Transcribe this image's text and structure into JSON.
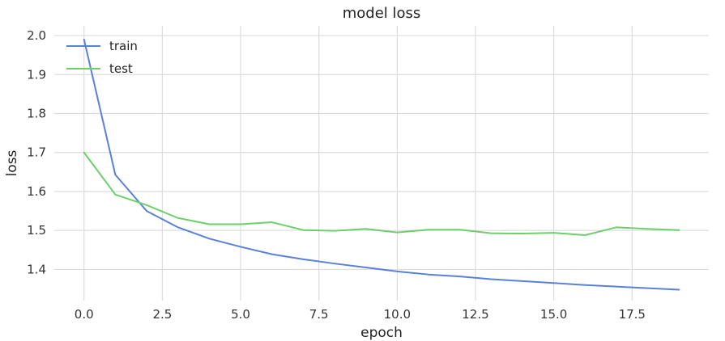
{
  "chart_data": {
    "type": "line",
    "title": "model loss",
    "xlabel": "epoch",
    "ylabel": "loss",
    "xlim": [
      -0.95,
      19.95
    ],
    "ylim": [
      1.32,
      2.025
    ],
    "xticks": [
      0,
      2.5,
      5,
      7.5,
      10,
      12.5,
      15,
      17.5
    ],
    "xtick_labels": [
      "0.0",
      "2.5",
      "5.0",
      "7.5",
      "10.0",
      "12.5",
      "15.0",
      "17.5"
    ],
    "yticks": [
      1.4,
      1.5,
      1.6,
      1.7,
      1.8,
      1.9,
      2.0
    ],
    "ytick_labels": [
      "1.4",
      "1.5",
      "1.6",
      "1.7",
      "1.8",
      "1.9",
      "2.0"
    ],
    "grid": true,
    "legend_position": "top-left",
    "x": [
      0,
      1,
      2,
      3,
      4,
      5,
      6,
      7,
      8,
      9,
      10,
      11,
      12,
      13,
      14,
      15,
      16,
      17,
      18,
      19
    ],
    "series": [
      {
        "name": "train",
        "color": "#5a81d9",
        "values": [
          1.99,
          1.643,
          1.55,
          1.508,
          1.479,
          1.458,
          1.439,
          1.426,
          1.415,
          1.405,
          1.395,
          1.387,
          1.382,
          1.375,
          1.37,
          1.365,
          1.36,
          1.356,
          1.352,
          1.348
        ]
      },
      {
        "name": "test",
        "color": "#6ccf6c",
        "values": [
          1.7,
          1.592,
          1.565,
          1.532,
          1.516,
          1.516,
          1.521,
          1.501,
          1.499,
          1.504,
          1.495,
          1.502,
          1.502,
          1.493,
          1.492,
          1.494,
          1.488,
          1.508,
          1.504,
          1.501
        ]
      }
    ]
  }
}
